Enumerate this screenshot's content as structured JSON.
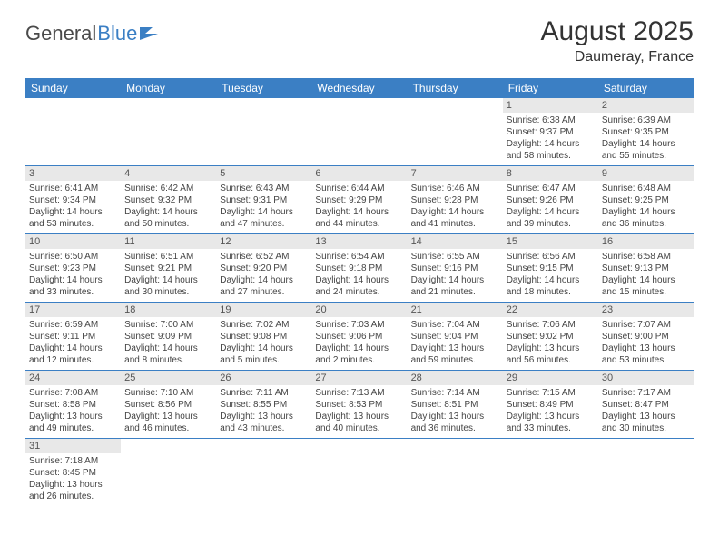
{
  "logo": {
    "text_general": "General",
    "text_blue": "Blue"
  },
  "header": {
    "month_title": "August 2025",
    "location": "Daumeray, France"
  },
  "styles": {
    "header_bg": "#3b7fc4",
    "daynum_bg": "#e8e8e8",
    "divider": "#3b7fc4",
    "page_bg": "#ffffff",
    "text_color": "#444444",
    "title_fontsize": 30,
    "location_fontsize": 16,
    "dayhead_fontsize": 12,
    "cell_fontsize": 10
  },
  "day_names": [
    "Sunday",
    "Monday",
    "Tuesday",
    "Wednesday",
    "Thursday",
    "Friday",
    "Saturday"
  ],
  "weeks": [
    [
      {
        "empty": true
      },
      {
        "empty": true
      },
      {
        "empty": true
      },
      {
        "empty": true
      },
      {
        "empty": true
      },
      {
        "day": "1",
        "sunrise": "Sunrise: 6:38 AM",
        "sunset": "Sunset: 9:37 PM",
        "daylight": "Daylight: 14 hours and 58 minutes."
      },
      {
        "day": "2",
        "sunrise": "Sunrise: 6:39 AM",
        "sunset": "Sunset: 9:35 PM",
        "daylight": "Daylight: 14 hours and 55 minutes."
      }
    ],
    [
      {
        "day": "3",
        "sunrise": "Sunrise: 6:41 AM",
        "sunset": "Sunset: 9:34 PM",
        "daylight": "Daylight: 14 hours and 53 minutes."
      },
      {
        "day": "4",
        "sunrise": "Sunrise: 6:42 AM",
        "sunset": "Sunset: 9:32 PM",
        "daylight": "Daylight: 14 hours and 50 minutes."
      },
      {
        "day": "5",
        "sunrise": "Sunrise: 6:43 AM",
        "sunset": "Sunset: 9:31 PM",
        "daylight": "Daylight: 14 hours and 47 minutes."
      },
      {
        "day": "6",
        "sunrise": "Sunrise: 6:44 AM",
        "sunset": "Sunset: 9:29 PM",
        "daylight": "Daylight: 14 hours and 44 minutes."
      },
      {
        "day": "7",
        "sunrise": "Sunrise: 6:46 AM",
        "sunset": "Sunset: 9:28 PM",
        "daylight": "Daylight: 14 hours and 41 minutes."
      },
      {
        "day": "8",
        "sunrise": "Sunrise: 6:47 AM",
        "sunset": "Sunset: 9:26 PM",
        "daylight": "Daylight: 14 hours and 39 minutes."
      },
      {
        "day": "9",
        "sunrise": "Sunrise: 6:48 AM",
        "sunset": "Sunset: 9:25 PM",
        "daylight": "Daylight: 14 hours and 36 minutes."
      }
    ],
    [
      {
        "day": "10",
        "sunrise": "Sunrise: 6:50 AM",
        "sunset": "Sunset: 9:23 PM",
        "daylight": "Daylight: 14 hours and 33 minutes."
      },
      {
        "day": "11",
        "sunrise": "Sunrise: 6:51 AM",
        "sunset": "Sunset: 9:21 PM",
        "daylight": "Daylight: 14 hours and 30 minutes."
      },
      {
        "day": "12",
        "sunrise": "Sunrise: 6:52 AM",
        "sunset": "Sunset: 9:20 PM",
        "daylight": "Daylight: 14 hours and 27 minutes."
      },
      {
        "day": "13",
        "sunrise": "Sunrise: 6:54 AM",
        "sunset": "Sunset: 9:18 PM",
        "daylight": "Daylight: 14 hours and 24 minutes."
      },
      {
        "day": "14",
        "sunrise": "Sunrise: 6:55 AM",
        "sunset": "Sunset: 9:16 PM",
        "daylight": "Daylight: 14 hours and 21 minutes."
      },
      {
        "day": "15",
        "sunrise": "Sunrise: 6:56 AM",
        "sunset": "Sunset: 9:15 PM",
        "daylight": "Daylight: 14 hours and 18 minutes."
      },
      {
        "day": "16",
        "sunrise": "Sunrise: 6:58 AM",
        "sunset": "Sunset: 9:13 PM",
        "daylight": "Daylight: 14 hours and 15 minutes."
      }
    ],
    [
      {
        "day": "17",
        "sunrise": "Sunrise: 6:59 AM",
        "sunset": "Sunset: 9:11 PM",
        "daylight": "Daylight: 14 hours and 12 minutes."
      },
      {
        "day": "18",
        "sunrise": "Sunrise: 7:00 AM",
        "sunset": "Sunset: 9:09 PM",
        "daylight": "Daylight: 14 hours and 8 minutes."
      },
      {
        "day": "19",
        "sunrise": "Sunrise: 7:02 AM",
        "sunset": "Sunset: 9:08 PM",
        "daylight": "Daylight: 14 hours and 5 minutes."
      },
      {
        "day": "20",
        "sunrise": "Sunrise: 7:03 AM",
        "sunset": "Sunset: 9:06 PM",
        "daylight": "Daylight: 14 hours and 2 minutes."
      },
      {
        "day": "21",
        "sunrise": "Sunrise: 7:04 AM",
        "sunset": "Sunset: 9:04 PM",
        "daylight": "Daylight: 13 hours and 59 minutes."
      },
      {
        "day": "22",
        "sunrise": "Sunrise: 7:06 AM",
        "sunset": "Sunset: 9:02 PM",
        "daylight": "Daylight: 13 hours and 56 minutes."
      },
      {
        "day": "23",
        "sunrise": "Sunrise: 7:07 AM",
        "sunset": "Sunset: 9:00 PM",
        "daylight": "Daylight: 13 hours and 53 minutes."
      }
    ],
    [
      {
        "day": "24",
        "sunrise": "Sunrise: 7:08 AM",
        "sunset": "Sunset: 8:58 PM",
        "daylight": "Daylight: 13 hours and 49 minutes."
      },
      {
        "day": "25",
        "sunrise": "Sunrise: 7:10 AM",
        "sunset": "Sunset: 8:56 PM",
        "daylight": "Daylight: 13 hours and 46 minutes."
      },
      {
        "day": "26",
        "sunrise": "Sunrise: 7:11 AM",
        "sunset": "Sunset: 8:55 PM",
        "daylight": "Daylight: 13 hours and 43 minutes."
      },
      {
        "day": "27",
        "sunrise": "Sunrise: 7:13 AM",
        "sunset": "Sunset: 8:53 PM",
        "daylight": "Daylight: 13 hours and 40 minutes."
      },
      {
        "day": "28",
        "sunrise": "Sunrise: 7:14 AM",
        "sunset": "Sunset: 8:51 PM",
        "daylight": "Daylight: 13 hours and 36 minutes."
      },
      {
        "day": "29",
        "sunrise": "Sunrise: 7:15 AM",
        "sunset": "Sunset: 8:49 PM",
        "daylight": "Daylight: 13 hours and 33 minutes."
      },
      {
        "day": "30",
        "sunrise": "Sunrise: 7:17 AM",
        "sunset": "Sunset: 8:47 PM",
        "daylight": "Daylight: 13 hours and 30 minutes."
      }
    ],
    [
      {
        "day": "31",
        "sunrise": "Sunrise: 7:18 AM",
        "sunset": "Sunset: 8:45 PM",
        "daylight": "Daylight: 13 hours and 26 minutes."
      },
      {
        "empty": true
      },
      {
        "empty": true
      },
      {
        "empty": true
      },
      {
        "empty": true
      },
      {
        "empty": true
      },
      {
        "empty": true
      }
    ]
  ]
}
